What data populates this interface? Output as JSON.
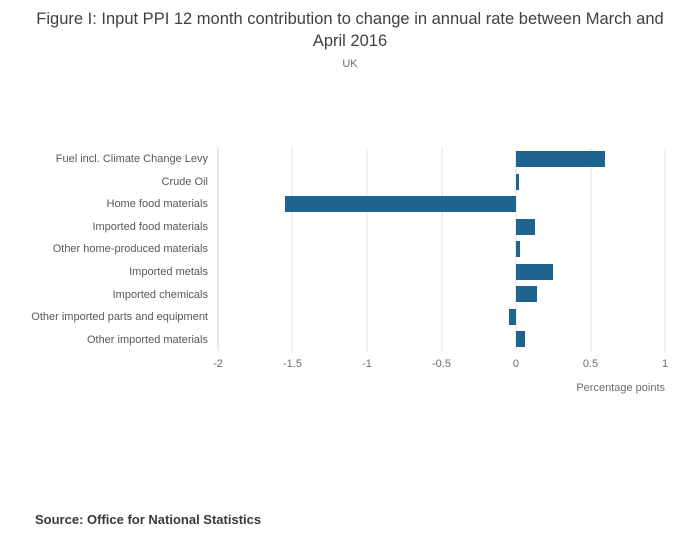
{
  "title": "Figure I: Input PPI 12 month contribution to change in annual rate between March and April 2016",
  "subtitle": "UK",
  "source": "Source: Office for National Statistics",
  "chart_data": {
    "type": "bar",
    "orientation": "horizontal",
    "title": "Figure I: Input PPI 12 month contribution to change in annual rate between March and April 2016",
    "subtitle": "UK",
    "categories": [
      "Fuel incl. Climate Change Levy",
      "Crude Oil",
      "Home food materials",
      "Imported food materials",
      "Other home-produced materials",
      "Imported metals",
      "Imported chemicals",
      "Other imported parts and equipment",
      "Other imported materials"
    ],
    "values": [
      0.6,
      0.02,
      -1.55,
      0.13,
      0.03,
      0.25,
      0.14,
      -0.05,
      0.06
    ],
    "xlabel": "Percentage points",
    "ylabel": "",
    "xlim": [
      -2,
      1
    ],
    "xticks": [
      -2,
      -1.5,
      -1,
      -0.5,
      0,
      0.5,
      1
    ],
    "grid": true,
    "legend": "none",
    "bar_color": "#1e648e"
  }
}
